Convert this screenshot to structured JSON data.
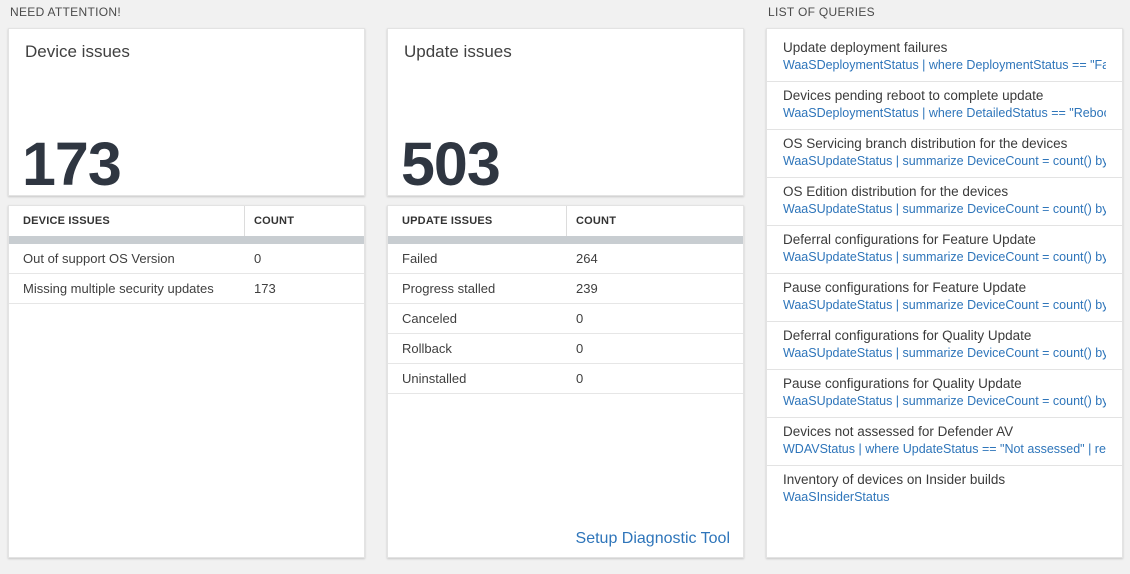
{
  "colors": {
    "background": "#f1f1f1",
    "card_background": "#ffffff",
    "card_border": "#e3e3e3",
    "accent_link_blue": "#2e75ba",
    "big_number_color": "#2f3641",
    "scrollbar_gray": "#c8cdd1"
  },
  "need_attention": {
    "title": "NEED ATTENTION!",
    "cards": [
      {
        "title": "Device issues",
        "big_number": "173",
        "table": {
          "headers": [
            "DEVICE ISSUES",
            "COUNT"
          ],
          "rows": [
            {
              "label": "Out of support OS Version",
              "count": "0"
            },
            {
              "label": "Missing multiple security updates",
              "count": "173"
            }
          ]
        }
      },
      {
        "title": "Update issues",
        "big_number": "503",
        "table": {
          "headers": [
            "UPDATE ISSUES",
            "COUNT"
          ],
          "rows": [
            {
              "label": "Failed",
              "count": "264"
            },
            {
              "label": "Progress stalled",
              "count": "239"
            },
            {
              "label": "Canceled",
              "count": "0"
            },
            {
              "label": "Rollback",
              "count": "0"
            },
            {
              "label": "Uninstalled",
              "count": "0"
            }
          ]
        },
        "footer_link": "Setup Diagnostic Tool"
      }
    ]
  },
  "queries": {
    "title": "LIST OF QUERIES",
    "items": [
      {
        "name": "Update deployment failures",
        "query": "WaaSDeploymentStatus | where DeploymentStatus == \"Failed\" |..."
      },
      {
        "name": "Devices pending reboot to complete update",
        "query": "WaaSDeploymentStatus | where DetailedStatus == \"Reboot pend..."
      },
      {
        "name": "OS Servicing branch distribution for the devices",
        "query": "WaaSUpdateStatus | summarize DeviceCount = count() by OSSer..."
      },
      {
        "name": "OS Edition distribution for the devices",
        "query": "WaaSUpdateStatus | summarize DeviceCount = count() by OSEdit..."
      },
      {
        "name": "Deferral configurations for Feature Update",
        "query": "WaaSUpdateStatus | summarize DeviceCount = count() by Featur..."
      },
      {
        "name": "Pause configurations for Feature Update",
        "query": "WaaSUpdateStatus | summarize DeviceCount = count() by Featur..."
      },
      {
        "name": "Deferral configurations for Quality Update",
        "query": "WaaSUpdateStatus | summarize DeviceCount = count() by Qualit..."
      },
      {
        "name": "Pause configurations for Quality Update",
        "query": "WaaSUpdateStatus | summarize DeviceCount = count() by Qualit..."
      },
      {
        "name": "Devices not assessed for Defender AV",
        "query": "WDAVStatus | where UpdateStatus == \"Not assessed\" | render ta..."
      },
      {
        "name": "Inventory of devices on Insider builds",
        "query": "WaaSInsiderStatus"
      }
    ]
  }
}
